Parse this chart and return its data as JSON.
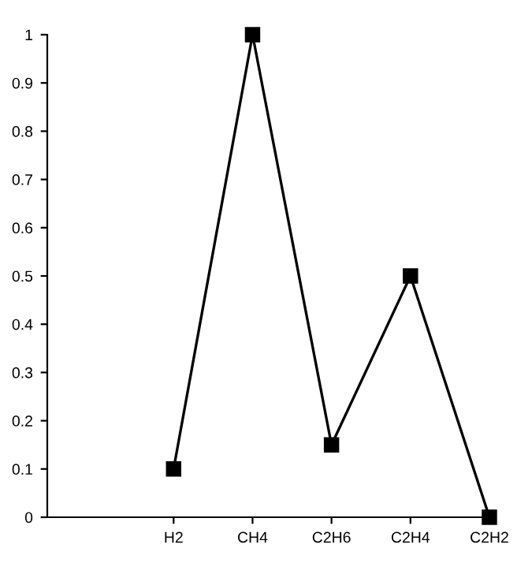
{
  "chart_data": {
    "type": "line",
    "categories": [
      "H2",
      "CH4",
      "C2H6",
      "C2H4",
      "C2H2"
    ],
    "series": [
      {
        "color": "#000000",
        "values": [
          0.1,
          1,
          0.15,
          0.5,
          0
        ]
      }
    ],
    "ylim": [
      0,
      1
    ],
    "yticks": [
      0,
      0.1,
      0.2,
      0.3,
      0.4,
      0.5,
      0.6,
      0.7,
      0.8,
      0.9,
      1
    ],
    "marker": "square",
    "line_style": "solid",
    "grid": false,
    "legend": false
  }
}
